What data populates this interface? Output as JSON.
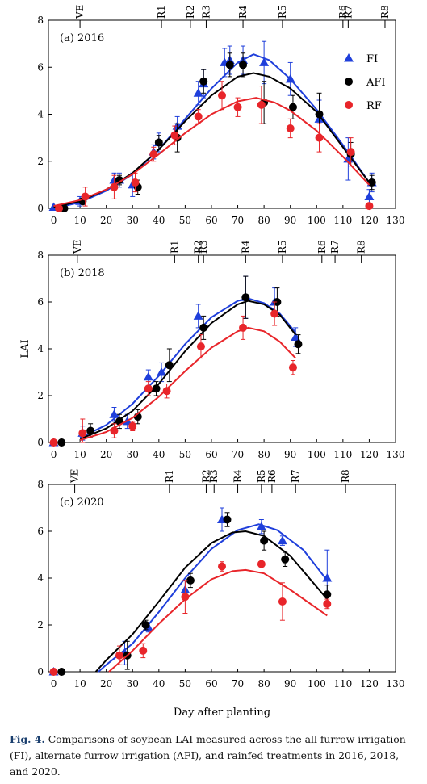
{
  "caption": {
    "label": "Fig. 4.",
    "text": "Comparisons of soybean LAI measured across the all furrow irrigation (FI), alternate furrow irrigation (AFI), and rainfed treatments in 2016, 2018, and 2020."
  },
  "colors": {
    "FI": "#1f3fdb",
    "AFI": "#000000",
    "RF": "#e8252a"
  },
  "chart_data": [
    {
      "type": "scatter",
      "title": "(a) 2016",
      "xlabel": "",
      "ylabel": "",
      "xlim": [
        -2,
        130
      ],
      "ylim": [
        0,
        8
      ],
      "xticks": [
        0,
        10,
        20,
        30,
        40,
        50,
        60,
        70,
        80,
        90,
        100,
        110,
        120,
        130
      ],
      "yticks": [
        0,
        2,
        4,
        6,
        8
      ],
      "legend": {
        "position": "top-right",
        "entries": [
          "FI",
          "AFI",
          "RF"
        ]
      },
      "stages": [
        {
          "label": "VE",
          "x": 10
        },
        {
          "label": "R1",
          "x": 41
        },
        {
          "label": "R2",
          "x": 52
        },
        {
          "label": "R3",
          "x": 58
        },
        {
          "label": "R4",
          "x": 72
        },
        {
          "label": "R5",
          "x": 87
        },
        {
          "label": "R6",
          "x": 110
        },
        {
          "label": "R7",
          "x": 112
        },
        {
          "label": "R8",
          "x": 126
        }
      ],
      "series": [
        {
          "name": "FI",
          "marker": "triangle",
          "x": [
            0,
            10,
            23,
            25,
            30,
            38,
            40,
            47,
            55,
            57,
            65,
            67,
            72,
            80,
            90,
            101,
            112,
            120,
            121
          ],
          "y": [
            0.05,
            0.3,
            1.2,
            1.2,
            1.0,
            2.4,
            2.8,
            3.5,
            4.9,
            5.3,
            6.2,
            6.3,
            6.3,
            6.2,
            5.5,
            3.8,
            2.1,
            0.5,
            1.1
          ],
          "err": [
            0.05,
            0.2,
            0.3,
            0.3,
            0.5,
            0.3,
            0.4,
            0.4,
            0.5,
            0.6,
            0.6,
            0.6,
            0.6,
            0.9,
            0.7,
            0.8,
            0.9,
            0.3,
            0.4
          ],
          "fit": [
            [
              0,
              0.0
            ],
            [
              10,
              0.25
            ],
            [
              20,
              0.75
            ],
            [
              30,
              1.45
            ],
            [
              40,
              2.5
            ],
            [
              50,
              3.8
            ],
            [
              60,
              5.1
            ],
            [
              70,
              6.2
            ],
            [
              76,
              6.55
            ],
            [
              82,
              6.3
            ],
            [
              90,
              5.5
            ],
            [
              100,
              4.2
            ],
            [
              110,
              2.7
            ],
            [
              120,
              1.1
            ]
          ]
        },
        {
          "name": "AFI",
          "marker": "circle",
          "x": [
            4,
            11,
            25,
            32,
            40,
            47,
            57,
            67,
            72,
            80,
            91,
            101,
            113,
            121
          ],
          "y": [
            0.0,
            0.3,
            1.2,
            0.9,
            2.8,
            3.0,
            5.4,
            6.1,
            6.1,
            4.5,
            4.3,
            4.0,
            2.3,
            1.1
          ],
          "err": [
            0.05,
            0.1,
            0.2,
            0.3,
            0.3,
            0.6,
            0.5,
            0.5,
            0.5,
            0.9,
            0.5,
            0.9,
            0.5,
            0.3
          ],
          "fit": [
            [
              0,
              0.05
            ],
            [
              10,
              0.3
            ],
            [
              20,
              0.8
            ],
            [
              30,
              1.5
            ],
            [
              40,
              2.5
            ],
            [
              50,
              3.7
            ],
            [
              60,
              4.8
            ],
            [
              70,
              5.6
            ],
            [
              76,
              5.75
            ],
            [
              82,
              5.6
            ],
            [
              90,
              5.1
            ],
            [
              100,
              4.1
            ],
            [
              110,
              2.6
            ],
            [
              120,
              1.1
            ]
          ]
        },
        {
          "name": "RF",
          "marker": "circle",
          "x": [
            2,
            12,
            23,
            31,
            38,
            46,
            55,
            64,
            70,
            79,
            90,
            101,
            113,
            120
          ],
          "y": [
            0.0,
            0.5,
            0.9,
            1.1,
            2.3,
            3.1,
            3.9,
            4.8,
            4.3,
            4.4,
            3.4,
            3.0,
            2.4,
            0.1
          ],
          "err": [
            0.05,
            0.4,
            0.5,
            0.4,
            0.3,
            0.4,
            0.3,
            0.6,
            0.4,
            0.8,
            0.4,
            0.6,
            0.6,
            0.1
          ],
          "fit": [
            [
              0,
              0.1
            ],
            [
              10,
              0.35
            ],
            [
              20,
              0.8
            ],
            [
              30,
              1.45
            ],
            [
              40,
              2.3
            ],
            [
              50,
              3.2
            ],
            [
              60,
              4.0
            ],
            [
              70,
              4.55
            ],
            [
              77,
              4.7
            ],
            [
              84,
              4.5
            ],
            [
              90,
              4.15
            ],
            [
              100,
              3.3
            ],
            [
              110,
              2.2
            ],
            [
              120,
              1.0
            ]
          ]
        }
      ]
    },
    {
      "type": "scatter",
      "title": "(b) 2018",
      "xlabel": "",
      "ylabel": "LAI",
      "xlim": [
        -2,
        130
      ],
      "ylim": [
        0,
        8
      ],
      "xticks": [
        0,
        10,
        20,
        30,
        40,
        50,
        60,
        70,
        80,
        90,
        100,
        110,
        120,
        130
      ],
      "yticks": [
        0,
        2,
        4,
        6,
        8
      ],
      "stages": [
        {
          "label": "VE",
          "x": 9
        },
        {
          "label": "R1",
          "x": 46
        },
        {
          "label": "R2",
          "x": 55
        },
        {
          "label": "R3",
          "x": 57
        },
        {
          "label": "R4",
          "x": 73
        },
        {
          "label": "R5",
          "x": 87
        },
        {
          "label": "R6",
          "x": 102
        },
        {
          "label": "R7",
          "x": 107
        },
        {
          "label": "R8",
          "x": 117
        }
      ],
      "series": [
        {
          "name": "FI",
          "marker": "triangle",
          "x": [
            0,
            11,
            23,
            28,
            36,
            41,
            55,
            73,
            84,
            92
          ],
          "y": [
            0.0,
            0.4,
            1.2,
            0.9,
            2.8,
            3.0,
            5.4,
            6.2,
            6.0,
            4.5
          ],
          "err": [
            0.05,
            0.3,
            0.3,
            0.3,
            0.3,
            0.4,
            0.5,
            0.9,
            0.6,
            0.4
          ],
          "fit": [
            [
              10,
              0.2
            ],
            [
              20,
              0.75
            ],
            [
              30,
              1.65
            ],
            [
              40,
              2.85
            ],
            [
              50,
              4.2
            ],
            [
              60,
              5.35
            ],
            [
              70,
              6.05
            ],
            [
              74,
              6.15
            ],
            [
              80,
              5.95
            ],
            [
              86,
              5.5
            ],
            [
              92,
              4.7
            ]
          ]
        },
        {
          "name": "AFI",
          "marker": "circle",
          "x": [
            3,
            14,
            25,
            32,
            39,
            44,
            57,
            73,
            85,
            93
          ],
          "y": [
            0.0,
            0.5,
            0.9,
            1.1,
            2.3,
            3.3,
            4.9,
            6.2,
            6.0,
            4.2
          ],
          "err": [
            0.05,
            0.3,
            0.3,
            0.3,
            0.3,
            0.7,
            0.5,
            0.9,
            0.6,
            0.4
          ],
          "fit": [
            [
              10,
              0.15
            ],
            [
              20,
              0.6
            ],
            [
              30,
              1.35
            ],
            [
              40,
              2.5
            ],
            [
              50,
              3.9
            ],
            [
              60,
              5.1
            ],
            [
              70,
              5.9
            ],
            [
              74,
              6.05
            ],
            [
              80,
              5.9
            ],
            [
              86,
              5.45
            ],
            [
              92,
              4.6
            ]
          ]
        },
        {
          "name": "RF",
          "marker": "circle",
          "x": [
            0,
            11,
            23,
            30,
            36,
            43,
            56,
            72,
            84,
            91
          ],
          "y": [
            0.0,
            0.4,
            0.5,
            0.7,
            2.3,
            2.2,
            4.1,
            4.9,
            5.5,
            3.2
          ],
          "err": [
            0.05,
            0.6,
            0.3,
            0.2,
            0.3,
            0.3,
            0.5,
            0.5,
            0.5,
            0.3
          ],
          "fit": [
            [
              10,
              0.1
            ],
            [
              20,
              0.45
            ],
            [
              30,
              1.05
            ],
            [
              40,
              1.95
            ],
            [
              50,
              3.05
            ],
            [
              60,
              4.05
            ],
            [
              70,
              4.75
            ],
            [
              74,
              4.9
            ],
            [
              80,
              4.75
            ],
            [
              86,
              4.3
            ],
            [
              92,
              3.6
            ]
          ]
        }
      ]
    },
    {
      "type": "scatter",
      "title": "(c) 2020",
      "xlabel": "Day after planting",
      "ylabel": "",
      "xlim": [
        -2,
        130
      ],
      "ylim": [
        0,
        8
      ],
      "xticks": [
        0,
        10,
        20,
        30,
        40,
        50,
        60,
        70,
        80,
        90,
        100,
        110,
        120,
        130
      ],
      "yticks": [
        0,
        2,
        4,
        6,
        8
      ],
      "stages": [
        {
          "label": "VE",
          "x": 8
        },
        {
          "label": "R1",
          "x": 44
        },
        {
          "label": "R2",
          "x": 58
        },
        {
          "label": "R3",
          "x": 61
        },
        {
          "label": "R4",
          "x": 70
        },
        {
          "label": "R5",
          "x": 79
        },
        {
          "label": "R6",
          "x": 83
        },
        {
          "label": "R7",
          "x": 92
        },
        {
          "label": "R8",
          "x": 111
        }
      ],
      "series": [
        {
          "name": "FI",
          "marker": "triangle",
          "x": [
            0,
            27,
            36,
            50,
            64,
            79,
            87,
            104
          ],
          "y": [
            0.0,
            0.8,
            1.9,
            3.5,
            6.5,
            6.2,
            5.6,
            4.0
          ],
          "err": [
            0.05,
            0.5,
            0.2,
            0.4,
            0.5,
            0.3,
            0.2,
            1.2
          ],
          "fit": [
            [
              17,
              0.0
            ],
            [
              20,
              0.3
            ],
            [
              30,
              1.2
            ],
            [
              40,
              2.55
            ],
            [
              50,
              4.0
            ],
            [
              60,
              5.25
            ],
            [
              70,
              6.05
            ],
            [
              78,
              6.3
            ],
            [
              85,
              6.05
            ],
            [
              95,
              5.2
            ],
            [
              104,
              3.9
            ]
          ]
        },
        {
          "name": "AFI",
          "marker": "circle",
          "x": [
            3,
            28,
            35,
            52,
            66,
            80,
            88,
            104
          ],
          "y": [
            0.0,
            0.7,
            2.0,
            3.9,
            6.5,
            5.6,
            4.8,
            3.3
          ],
          "err": [
            0.05,
            0.6,
            0.2,
            0.3,
            0.3,
            0.4,
            0.3,
            0.4
          ],
          "fit": [
            [
              16,
              0.0
            ],
            [
              20,
              0.5
            ],
            [
              30,
              1.6
            ],
            [
              40,
              3.0
            ],
            [
              50,
              4.45
            ],
            [
              60,
              5.5
            ],
            [
              68,
              5.95
            ],
            [
              73,
              6.0
            ],
            [
              80,
              5.8
            ],
            [
              90,
              4.95
            ],
            [
              104,
              3.1
            ]
          ]
        },
        {
          "name": "RF",
          "marker": "circle",
          "x": [
            0,
            25,
            34,
            50,
            64,
            79,
            87,
            104
          ],
          "y": [
            0.0,
            0.7,
            0.9,
            3.2,
            4.5,
            4.6,
            3.0,
            2.9
          ],
          "err": [
            0.05,
            0.4,
            0.3,
            0.7,
            0.2,
            0.1,
            0.8,
            0.2
          ],
          "fit": [
            [
              21,
              0.0
            ],
            [
              25,
              0.4
            ],
            [
              30,
              0.9
            ],
            [
              40,
              2.05
            ],
            [
              50,
              3.1
            ],
            [
              60,
              3.95
            ],
            [
              68,
              4.3
            ],
            [
              73,
              4.35
            ],
            [
              80,
              4.2
            ],
            [
              90,
              3.5
            ],
            [
              104,
              2.4
            ]
          ]
        }
      ]
    }
  ]
}
